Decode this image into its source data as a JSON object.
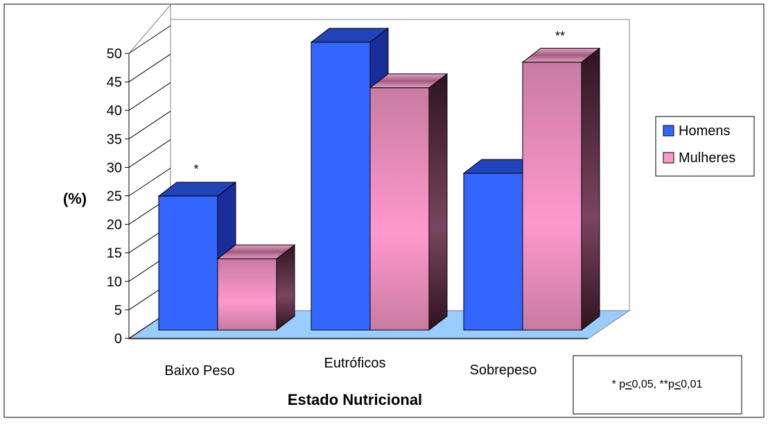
{
  "chart_data": {
    "type": "bar",
    "title": "",
    "xlabel": "Estado Nutricional",
    "ylabel": "(%)",
    "ylim": [
      0,
      50
    ],
    "yticks": [
      0,
      5,
      10,
      15,
      20,
      25,
      30,
      35,
      40,
      45,
      50
    ],
    "categories": [
      "Baixo Peso",
      "Eutróficos",
      "Sobrepeso"
    ],
    "series": [
      {
        "name": "Homens",
        "values": [
          23.5,
          50.5,
          27.5
        ],
        "color": "#3366FF"
      },
      {
        "name": "Mulheres",
        "values": [
          12.5,
          42.5,
          47
        ],
        "color": "#FF99CC"
      }
    ],
    "annotations": [
      {
        "category": "Baixo Peso",
        "text": "*"
      },
      {
        "category": "Sobrepeso",
        "text": "**"
      }
    ],
    "legend_position": "right",
    "note": "* p<0,05, **p<0,01",
    "style": "3d-clustered-column"
  }
}
